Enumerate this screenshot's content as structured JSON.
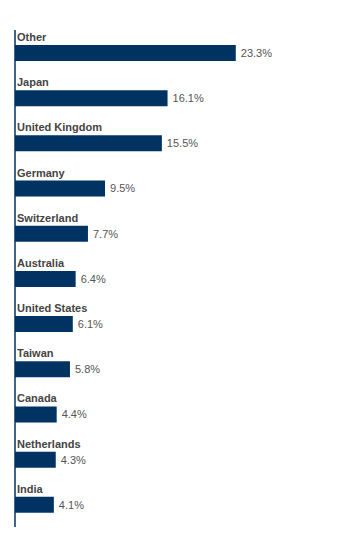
{
  "chart_data": {
    "type": "bar",
    "orientation": "horizontal",
    "categories": [
      "Other",
      "Japan",
      "United Kingdom",
      "Germany",
      "Switzerland",
      "Australia",
      "United States",
      "Taiwan",
      "Canada",
      "Netherlands",
      "India"
    ],
    "values": [
      23.3,
      16.1,
      15.5,
      9.5,
      7.7,
      6.4,
      6.1,
      5.8,
      4.4,
      4.3,
      4.1
    ],
    "value_labels": [
      "23.3%",
      "16.1%",
      "15.5%",
      "9.5%",
      "7.7%",
      "6.4%",
      "6.1%",
      "5.8%",
      "4.4%",
      "4.3%",
      "4.1%"
    ],
    "data_labels": true,
    "color": "#003362",
    "xlim": [
      0,
      30.5
    ],
    "tick_labels": false
  }
}
